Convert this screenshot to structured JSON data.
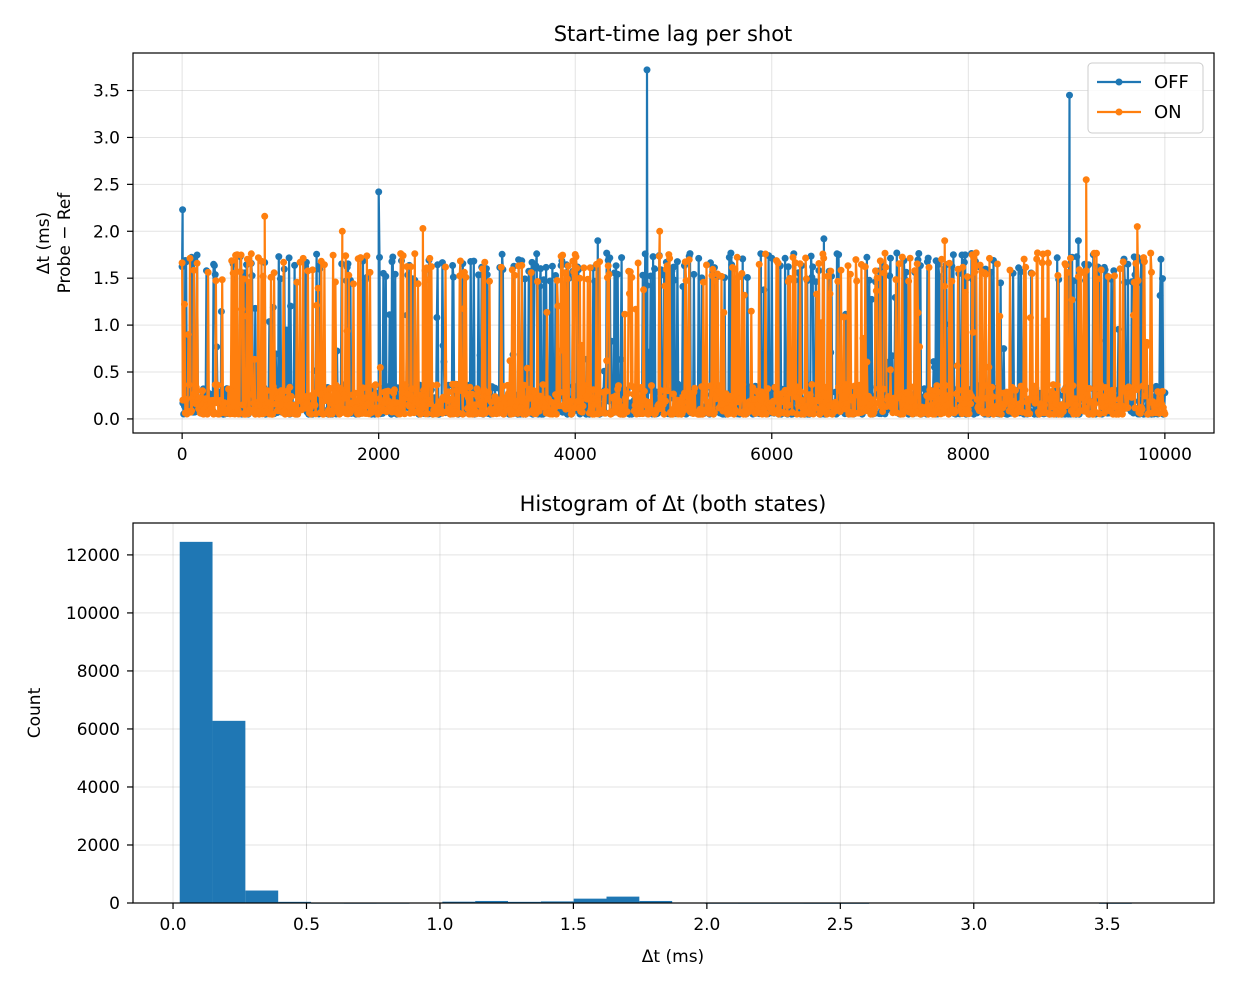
{
  "chart_data": [
    {
      "type": "line",
      "title": "Start-time lag per shot",
      "ylabel_line1": "Δt (ms)",
      "ylabel_line2": "Probe − Ref",
      "xlabel": "",
      "xlim": [
        -500,
        10500
      ],
      "ylim": [
        -0.15,
        3.9
      ],
      "xticks": [
        0,
        2000,
        4000,
        6000,
        8000,
        10000
      ],
      "yticks": [
        0.0,
        0.5,
        1.0,
        1.5,
        2.0,
        2.5,
        3.0,
        3.5
      ],
      "ytick_format": 1,
      "grid": true,
      "legend": "top-right",
      "series": [
        {
          "name": "OFF",
          "color": "#1f77b4",
          "description": "~10000 shots, mostly 0.05-0.3 ms with frequent jumps to ~1.5-1.8 ms",
          "spikes": [
            [
              5,
              2.23
            ],
            [
              2000,
              2.42
            ],
            [
              4730,
              3.72
            ],
            [
              9030,
              3.45
            ],
            [
              9120,
              1.9
            ],
            [
              4230,
              1.9
            ],
            [
              6530,
              1.92
            ]
          ]
        },
        {
          "name": "ON",
          "color": "#ff7f0e",
          "description": "~10000 shots, mostly 0.05-0.3 ms with frequent jumps to ~1.5-1.8 ms",
          "spikes": [
            [
              840,
              2.16
            ],
            [
              1630,
              2.0
            ],
            [
              2450,
              2.03
            ],
            [
              4860,
              2.0
            ],
            [
              7760,
              1.9
            ],
            [
              9200,
              2.55
            ],
            [
              9720,
              2.05
            ]
          ]
        }
      ]
    },
    {
      "type": "bar",
      "title": "Histogram of Δt (both states)",
      "xlabel": "Δt (ms)",
      "ylabel": "Count",
      "xlim": [
        -0.15,
        3.9
      ],
      "ylim": [
        0,
        13100
      ],
      "xticks": [
        0.0,
        0.5,
        1.0,
        1.5,
        2.0,
        2.5,
        3.0,
        3.5
      ],
      "xtick_format": 1,
      "yticks": [
        0,
        2000,
        4000,
        6000,
        8000,
        10000,
        12000
      ],
      "grid": true,
      "color": "#1f77b4",
      "bin_edges": [
        0.025,
        0.148,
        0.271,
        0.394,
        0.517,
        0.64,
        0.763,
        0.886,
        1.009,
        1.132,
        1.255,
        1.378,
        1.501,
        1.624,
        1.747,
        1.87,
        1.993,
        2.116,
        2.239,
        2.362,
        2.485,
        2.608,
        2.731,
        2.854,
        2.977,
        3.1,
        3.223,
        3.346,
        3.469,
        3.592,
        3.715
      ],
      "values": [
        12450,
        6280,
        430,
        40,
        5,
        3,
        4,
        10,
        45,
        70,
        40,
        55,
        150,
        220,
        70,
        10,
        3,
        2,
        2,
        1,
        1,
        0,
        0,
        0,
        0,
        0,
        0,
        0,
        1,
        0
      ]
    }
  ]
}
